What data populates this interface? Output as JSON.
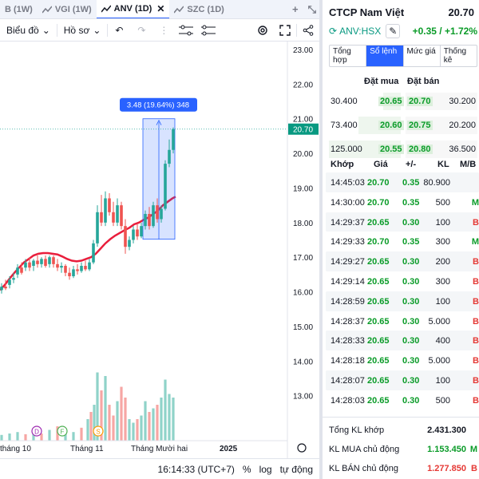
{
  "tabs": [
    {
      "label": "B (1W)",
      "active": false
    },
    {
      "label": "VGI (1W)",
      "active": false
    },
    {
      "label": "ANV (1D)",
      "active": true
    },
    {
      "label": "SZC (1D)",
      "active": false
    }
  ],
  "tab_plus": "+",
  "toolbar": {
    "chart_type_label": "Biểu đồ",
    "profile_label": "Hồ sơ"
  },
  "chart_data": {
    "type": "candlestick",
    "price_axis": {
      "min": 12.0,
      "max": 23.0,
      "ticks": [
        "23.00",
        "22.00",
        "21.00",
        "20.00",
        "19.00",
        "18.00",
        "17.00",
        "16.00",
        "15.00",
        "14.00",
        "13.00"
      ]
    },
    "x_labels": [
      "tháng 10",
      "Tháng 11",
      "Tháng Mười hai",
      "2025"
    ],
    "last_price_label": "20.70",
    "measure_label": "3.48 (19.64%) 348",
    "event_markers": [
      "D",
      "F",
      "S"
    ],
    "ma_line": [
      [
        0,
        16.05
      ],
      [
        6,
        16.2
      ],
      [
        12,
        16.38
      ],
      [
        18,
        16.55
      ],
      [
        24,
        16.7
      ],
      [
        30,
        16.85
      ],
      [
        36,
        16.95
      ],
      [
        42,
        17.05
      ],
      [
        48,
        17.1
      ],
      [
        54,
        17.12
      ],
      [
        60,
        17.12
      ],
      [
        66,
        17.1
      ],
      [
        72,
        17.08
      ],
      [
        78,
        17.02
      ],
      [
        84,
        16.95
      ],
      [
        90,
        16.9
      ],
      [
        96,
        16.88
      ],
      [
        102,
        16.9
      ],
      [
        108,
        16.95
      ],
      [
        114,
        17.0
      ],
      [
        120,
        17.1
      ],
      [
        126,
        17.25
      ],
      [
        132,
        17.4
      ],
      [
        138,
        17.52
      ],
      [
        144,
        17.62
      ],
      [
        150,
        17.7
      ],
      [
        156,
        17.78
      ],
      [
        162,
        17.85
      ],
      [
        168,
        17.95
      ],
      [
        174,
        18.0
      ],
      [
        180,
        18.08
      ],
      [
        186,
        18.15
      ],
      [
        192,
        18.25
      ],
      [
        198,
        18.35
      ],
      [
        204,
        18.5
      ],
      [
        210,
        18.6
      ],
      [
        216,
        18.7
      ],
      [
        220,
        18.75
      ]
    ],
    "candles": [
      {
        "x": 2,
        "o": 16.05,
        "h": 16.25,
        "l": 15.95,
        "c": 16.15,
        "up": true
      },
      {
        "x": 7,
        "o": 16.15,
        "h": 16.35,
        "l": 16.05,
        "c": 16.1,
        "up": false
      },
      {
        "x": 12,
        "o": 16.2,
        "h": 16.45,
        "l": 16.1,
        "c": 16.35,
        "up": true
      },
      {
        "x": 17,
        "o": 16.35,
        "h": 16.55,
        "l": 16.25,
        "c": 16.4,
        "up": true
      },
      {
        "x": 22,
        "o": 16.5,
        "h": 16.8,
        "l": 16.4,
        "c": 16.7,
        "up": true
      },
      {
        "x": 27,
        "o": 16.7,
        "h": 16.85,
        "l": 16.5,
        "c": 16.55,
        "up": false
      },
      {
        "x": 32,
        "o": 16.7,
        "h": 16.95,
        "l": 16.6,
        "c": 16.85,
        "up": true
      },
      {
        "x": 37,
        "o": 16.85,
        "h": 17.0,
        "l": 16.6,
        "c": 16.7,
        "up": false
      },
      {
        "x": 42,
        "o": 16.75,
        "h": 16.95,
        "l": 16.6,
        "c": 16.9,
        "up": true
      },
      {
        "x": 47,
        "o": 16.9,
        "h": 17.05,
        "l": 16.7,
        "c": 16.8,
        "up": false
      },
      {
        "x": 52,
        "o": 16.8,
        "h": 17.0,
        "l": 16.7,
        "c": 16.95,
        "up": true
      },
      {
        "x": 57,
        "o": 16.95,
        "h": 17.05,
        "l": 16.7,
        "c": 16.75,
        "up": false
      },
      {
        "x": 62,
        "o": 16.8,
        "h": 17.05,
        "l": 16.7,
        "c": 17.0,
        "up": true
      },
      {
        "x": 67,
        "o": 17.0,
        "h": 17.05,
        "l": 16.7,
        "c": 16.8,
        "up": false
      },
      {
        "x": 72,
        "o": 16.8,
        "h": 16.95,
        "l": 16.6,
        "c": 16.7,
        "up": false
      },
      {
        "x": 77,
        "o": 16.7,
        "h": 16.85,
        "l": 16.55,
        "c": 16.75,
        "up": true
      },
      {
        "x": 82,
        "o": 16.75,
        "h": 16.8,
        "l": 16.45,
        "c": 16.55,
        "up": false
      },
      {
        "x": 87,
        "o": 16.55,
        "h": 16.7,
        "l": 16.35,
        "c": 16.45,
        "up": false
      },
      {
        "x": 92,
        "o": 16.45,
        "h": 16.75,
        "l": 16.4,
        "c": 16.65,
        "up": true
      },
      {
        "x": 97,
        "o": 16.65,
        "h": 16.8,
        "l": 16.5,
        "c": 16.6,
        "up": false
      },
      {
        "x": 102,
        "o": 16.6,
        "h": 16.85,
        "l": 16.55,
        "c": 16.75,
        "up": true
      },
      {
        "x": 107,
        "o": 16.75,
        "h": 16.9,
        "l": 16.6,
        "c": 16.65,
        "up": false
      },
      {
        "x": 112,
        "o": 16.65,
        "h": 16.95,
        "l": 16.6,
        "c": 16.85,
        "up": true
      },
      {
        "x": 117,
        "o": 16.85,
        "h": 17.5,
        "l": 16.8,
        "c": 17.4,
        "up": true
      },
      {
        "x": 122,
        "o": 17.4,
        "h": 18.5,
        "l": 17.3,
        "c": 18.3,
        "up": true
      },
      {
        "x": 127,
        "o": 18.3,
        "h": 18.8,
        "l": 17.9,
        "c": 18.0,
        "up": false
      },
      {
        "x": 132,
        "o": 18.0,
        "h": 18.9,
        "l": 17.9,
        "c": 18.7,
        "up": true
      },
      {
        "x": 137,
        "o": 18.7,
        "h": 18.85,
        "l": 18.2,
        "c": 18.3,
        "up": false
      },
      {
        "x": 142,
        "o": 18.3,
        "h": 18.6,
        "l": 17.9,
        "c": 18.0,
        "up": false
      },
      {
        "x": 147,
        "o": 18.0,
        "h": 18.7,
        "l": 17.9,
        "c": 18.5,
        "up": true
      },
      {
        "x": 152,
        "o": 18.5,
        "h": 18.6,
        "l": 17.8,
        "c": 17.9,
        "up": false
      },
      {
        "x": 157,
        "o": 17.9,
        "h": 18.1,
        "l": 17.1,
        "c": 17.3,
        "up": false
      },
      {
        "x": 162,
        "o": 17.3,
        "h": 17.6,
        "l": 17.2,
        "c": 17.5,
        "up": true
      },
      {
        "x": 167,
        "o": 17.5,
        "h": 17.9,
        "l": 17.4,
        "c": 17.8,
        "up": true
      },
      {
        "x": 172,
        "o": 17.8,
        "h": 17.95,
        "l": 17.5,
        "c": 17.6,
        "up": false
      },
      {
        "x": 177,
        "o": 17.6,
        "h": 18.0,
        "l": 17.55,
        "c": 17.9,
        "up": true
      },
      {
        "x": 182,
        "o": 17.9,
        "h": 18.35,
        "l": 17.8,
        "c": 18.25,
        "up": true
      },
      {
        "x": 187,
        "o": 18.25,
        "h": 18.45,
        "l": 17.8,
        "c": 17.9,
        "up": false
      },
      {
        "x": 192,
        "o": 17.9,
        "h": 18.6,
        "l": 17.85,
        "c": 18.5,
        "up": true
      },
      {
        "x": 197,
        "o": 18.5,
        "h": 18.7,
        "l": 18.0,
        "c": 18.1,
        "up": false
      },
      {
        "x": 202,
        "o": 18.1,
        "h": 18.5,
        "l": 18.0,
        "c": 18.4,
        "up": true
      },
      {
        "x": 207,
        "o": 18.4,
        "h": 19.8,
        "l": 18.35,
        "c": 19.7,
        "up": true
      },
      {
        "x": 212,
        "o": 19.7,
        "h": 20.4,
        "l": 19.6,
        "c": 20.1,
        "up": true
      },
      {
        "x": 217,
        "o": 20.1,
        "h": 20.75,
        "l": 20.0,
        "c": 20.7,
        "up": true
      }
    ],
    "volumes": [
      {
        "x": 110,
        "v": 0.3,
        "up": true
      },
      {
        "x": 114,
        "v": 0.4,
        "up": false
      },
      {
        "x": 118,
        "v": 0.5,
        "up": true
      },
      {
        "x": 122,
        "v": 0.95,
        "up": true
      },
      {
        "x": 127,
        "v": 0.7,
        "up": false
      },
      {
        "x": 132,
        "v": 0.9,
        "up": true
      },
      {
        "x": 137,
        "v": 0.5,
        "up": false
      },
      {
        "x": 142,
        "v": 0.35,
        "up": false
      },
      {
        "x": 147,
        "v": 0.55,
        "up": true
      },
      {
        "x": 152,
        "v": 0.75,
        "up": false
      },
      {
        "x": 157,
        "v": 0.6,
        "up": false
      },
      {
        "x": 162,
        "v": 0.3,
        "up": true
      },
      {
        "x": 167,
        "v": 0.25,
        "up": true
      },
      {
        "x": 172,
        "v": 0.3,
        "up": false
      },
      {
        "x": 177,
        "v": 0.35,
        "up": true
      },
      {
        "x": 182,
        "v": 0.55,
        "up": true
      },
      {
        "x": 187,
        "v": 0.4,
        "up": false
      },
      {
        "x": 192,
        "v": 0.45,
        "up": true
      },
      {
        "x": 197,
        "v": 0.5,
        "up": false
      },
      {
        "x": 202,
        "v": 0.6,
        "up": true
      },
      {
        "x": 207,
        "v": 0.85,
        "up": true
      },
      {
        "x": 212,
        "v": 0.65,
        "up": true
      },
      {
        "x": 217,
        "v": 0.6,
        "up": true
      },
      {
        "x": 2,
        "v": 0.08,
        "up": true
      },
      {
        "x": 12,
        "v": 0.1,
        "up": true
      },
      {
        "x": 22,
        "v": 0.12,
        "up": true
      },
      {
        "x": 32,
        "v": 0.09,
        "up": false
      },
      {
        "x": 42,
        "v": 0.11,
        "up": true
      },
      {
        "x": 52,
        "v": 0.1,
        "up": false
      },
      {
        "x": 62,
        "v": 0.15,
        "up": true
      },
      {
        "x": 72,
        "v": 0.2,
        "up": false
      },
      {
        "x": 82,
        "v": 0.14,
        "up": true
      },
      {
        "x": 92,
        "v": 0.12,
        "up": true
      },
      {
        "x": 102,
        "v": 0.18,
        "up": false
      }
    ]
  },
  "bottombar": {
    "clock": "16:14:33 (UTC+7)",
    "percent_label": "%",
    "log_label": "log",
    "auto_label": "tự động"
  },
  "panel": {
    "company": "CTCP Nam Việt",
    "price": "20.70",
    "symbol": "ANV:HSX",
    "change": "+0.35 / +1.72%",
    "subtabs": [
      "Tổng hợp",
      "Sổ lệnh",
      "Mức giá",
      "Thống kê"
    ],
    "ob_head": {
      "buy": "Đặt mua",
      "sell": "Đặt bán"
    },
    "orderbook": [
      {
        "bid_vol": "30.400",
        "bid": "20.65",
        "ask": "20.70",
        "ask_vol": "30.200"
      },
      {
        "bid_vol": "73.400",
        "bid": "20.60",
        "ask": "20.75",
        "ask_vol": "20.200"
      },
      {
        "bid_vol": "125.000",
        "bid": "20.55",
        "ask": "20.80",
        "ask_vol": "36.500"
      }
    ],
    "trade_head": {
      "time": "Khớp",
      "price": "Giá",
      "chg": "+/-",
      "vol": "KL",
      "side": "M/B"
    },
    "trades": [
      {
        "time": "14:45:03",
        "price": "20.70",
        "chg": "0.35",
        "vol": "80.900",
        "side": ""
      },
      {
        "time": "14:30:00",
        "price": "20.70",
        "chg": "0.35",
        "vol": "500",
        "side": "M"
      },
      {
        "time": "14:29:37",
        "price": "20.65",
        "chg": "0.30",
        "vol": "100",
        "side": "B"
      },
      {
        "time": "14:29:33",
        "price": "20.70",
        "chg": "0.35",
        "vol": "300",
        "side": "M"
      },
      {
        "time": "14:29:27",
        "price": "20.65",
        "chg": "0.30",
        "vol": "200",
        "side": "B"
      },
      {
        "time": "14:29:14",
        "price": "20.65",
        "chg": "0.30",
        "vol": "300",
        "side": "B"
      },
      {
        "time": "14:28:59",
        "price": "20.65",
        "chg": "0.30",
        "vol": "100",
        "side": "B"
      },
      {
        "time": "14:28:37",
        "price": "20.65",
        "chg": "0.30",
        "vol": "5.000",
        "side": "B"
      },
      {
        "time": "14:28:33",
        "price": "20.65",
        "chg": "0.30",
        "vol": "400",
        "side": "B"
      },
      {
        "time": "14:28:18",
        "price": "20.65",
        "chg": "0.30",
        "vol": "5.000",
        "side": "B"
      },
      {
        "time": "14:28:07",
        "price": "20.65",
        "chg": "0.30",
        "vol": "100",
        "side": "B"
      },
      {
        "time": "14:28:03",
        "price": "20.65",
        "chg": "0.30",
        "vol": "500",
        "side": "B"
      }
    ],
    "summary": {
      "total_label": "Tổng KL khớp",
      "total_value": "2.431.300",
      "buy_label": "KL MUA chủ động",
      "buy_value": "1.153.450",
      "buy_side": "M",
      "sell_label": "KL BÁN chủ động",
      "sell_value": "1.277.850",
      "sell_side": "B"
    }
  },
  "colors": {
    "up": "#26a69a",
    "down": "#ef5350",
    "ma": "#e91e3c",
    "accent": "#2962ff",
    "green_text": "#0a9b28"
  }
}
